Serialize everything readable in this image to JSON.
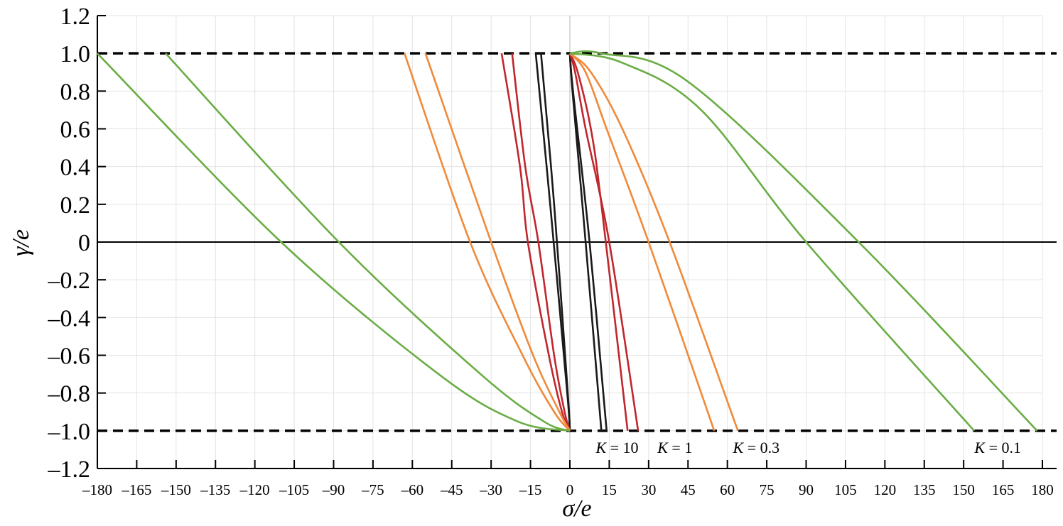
{
  "chart_data": {
    "type": "line",
    "xlabel": "σ/e",
    "ylabel": "γ/e",
    "xlim": [
      -180,
      180
    ],
    "ylim": [
      -1.2,
      1.2
    ],
    "x_ticks": [
      -180,
      -165,
      -150,
      -135,
      -120,
      -105,
      -90,
      -75,
      -60,
      -45,
      -30,
      -15,
      0,
      15,
      30,
      45,
      60,
      75,
      90,
      105,
      120,
      135,
      150,
      165,
      180
    ],
    "y_ticks": [
      1.2,
      1.0,
      0.8,
      0.6,
      0.4,
      0.2,
      0,
      -0.2,
      -0.4,
      -0.6,
      -0.8,
      -1.0,
      -1.2
    ],
    "x_tick_labels": [
      "–180",
      "–165",
      "–150",
      "–135",
      "–120",
      "–105",
      "–90",
      "–75",
      "–60",
      "–45",
      "–30",
      "–15",
      "0",
      "15",
      "30",
      "45",
      "60",
      "75",
      "90",
      "105",
      "120",
      "135",
      "150",
      "165",
      "180"
    ],
    "y_tick_labels": [
      "1.2",
      "1.0",
      "0.8",
      "0.6",
      "0.4",
      "0.2",
      "0",
      "–0.2",
      "–0.4",
      "–0.6",
      "–0.8",
      "–1.0",
      "–1.2"
    ],
    "grid": true,
    "dashed_reference_lines": [
      1.0,
      -1.0
    ],
    "colors": {
      "K_10": "#1a1a1a",
      "K_1": "#c0272d",
      "K_0.3": "#ef8a3a",
      "K_0.1": "#6aad45"
    },
    "k_labels": [
      {
        "prefix": "K",
        "value": " = 10",
        "x": 18
      },
      {
        "prefix": "K",
        "value": " = 1",
        "x": 40
      },
      {
        "prefix": "K",
        "value": " = 0.3",
        "x": 71
      },
      {
        "prefix": "K",
        "value": " = 0.1",
        "x": 163
      }
    ],
    "series": [
      {
        "group": "K = 10",
        "color": "#1a1a1a",
        "points": [
          [
            -13,
            1.0
          ],
          [
            -7.5,
            0.2
          ],
          [
            -1,
            -0.8
          ],
          [
            0,
            -1.0
          ]
        ]
      },
      {
        "group": "K = 10",
        "color": "#1a1a1a",
        "points": [
          [
            -11,
            1.0
          ],
          [
            -6,
            0.2
          ],
          [
            -0.8,
            -0.8
          ],
          [
            0,
            -1.0
          ]
        ]
      },
      {
        "group": "K = 10",
        "color": "#1a1a1a",
        "points": [
          [
            0,
            1.0
          ],
          [
            1,
            0.8
          ],
          [
            6,
            0.0
          ],
          [
            12,
            -1.0
          ]
        ]
      },
      {
        "group": "K = 10",
        "color": "#1a1a1a",
        "points": [
          [
            0,
            1.0
          ],
          [
            1.2,
            0.8
          ],
          [
            7.5,
            0.0
          ],
          [
            14,
            -1.0
          ]
        ]
      },
      {
        "group": "K = 1",
        "color": "#c0272d",
        "points": [
          [
            -26,
            1.0
          ],
          [
            -19,
            0.4
          ],
          [
            -16,
            0.0
          ],
          [
            -8,
            -0.6
          ],
          [
            -3,
            -0.9
          ],
          [
            0,
            -1.0
          ]
        ]
      },
      {
        "group": "K = 1",
        "color": "#c0272d",
        "points": [
          [
            -22,
            1.0
          ],
          [
            -17,
            0.4
          ],
          [
            -12,
            0.0
          ],
          [
            -6,
            -0.6
          ],
          [
            -2,
            -0.9
          ],
          [
            0,
            -1.0
          ]
        ]
      },
      {
        "group": "K = 1",
        "color": "#c0272d",
        "points": [
          [
            0,
            1.0
          ],
          [
            3,
            0.9
          ],
          [
            8,
            0.6
          ],
          [
            12,
            0.2
          ],
          [
            22,
            -1.0
          ]
        ]
      },
      {
        "group": "K = 1",
        "color": "#c0272d",
        "points": [
          [
            0,
            1.0
          ],
          [
            2,
            0.9
          ],
          [
            6,
            0.6
          ],
          [
            15,
            0.0
          ],
          [
            26,
            -1.0
          ]
        ]
      },
      {
        "group": "K = 0.3",
        "color": "#ef8a3a",
        "points": [
          [
            -63,
            1.0
          ],
          [
            -38,
            0.0
          ],
          [
            -18,
            -0.6
          ],
          [
            -6,
            -0.9
          ],
          [
            0,
            -1.0
          ]
        ]
      },
      {
        "group": "K = 0.3",
        "color": "#ef8a3a",
        "points": [
          [
            -55,
            1.0
          ],
          [
            -30,
            0.0
          ],
          [
            -14,
            -0.6
          ],
          [
            -4,
            -0.9
          ],
          [
            0,
            -1.0
          ]
        ]
      },
      {
        "group": "K = 0.3",
        "color": "#ef8a3a",
        "points": [
          [
            0,
            1.0
          ],
          [
            6,
            0.9
          ],
          [
            14,
            0.6
          ],
          [
            30,
            0.0
          ],
          [
            55,
            -1.0
          ]
        ]
      },
      {
        "group": "K = 0.3",
        "color": "#ef8a3a",
        "points": [
          [
            0,
            1.0
          ],
          [
            8,
            0.9
          ],
          [
            20,
            0.6
          ],
          [
            38,
            0.0
          ],
          [
            64,
            -1.0
          ]
        ]
      },
      {
        "group": "K = 0.1",
        "color": "#6aad45",
        "points": [
          [
            -180,
            1.0
          ],
          [
            -110,
            0.0
          ],
          [
            -50,
            -0.7
          ],
          [
            -20,
            -0.95
          ],
          [
            0,
            -1.0
          ]
        ]
      },
      {
        "group": "K = 0.1",
        "color": "#6aad45",
        "points": [
          [
            -154,
            1.0
          ],
          [
            -88,
            0.0
          ],
          [
            -34,
            -0.7
          ],
          [
            -10,
            -0.95
          ],
          [
            0,
            -1.0
          ]
        ]
      },
      {
        "group": "K = 0.1",
        "color": "#6aad45",
        "points": [
          [
            0,
            1.0
          ],
          [
            20,
            0.95
          ],
          [
            50,
            0.7
          ],
          [
            90,
            0.0
          ],
          [
            154,
            -1.0
          ]
        ]
      },
      {
        "group": "K = 0.1",
        "color": "#6aad45",
        "points": [
          [
            0,
            1.0
          ],
          [
            12,
            1.0
          ],
          [
            45,
            0.85
          ],
          [
            110,
            0.0
          ],
          [
            178,
            -1.0
          ]
        ]
      }
    ]
  }
}
